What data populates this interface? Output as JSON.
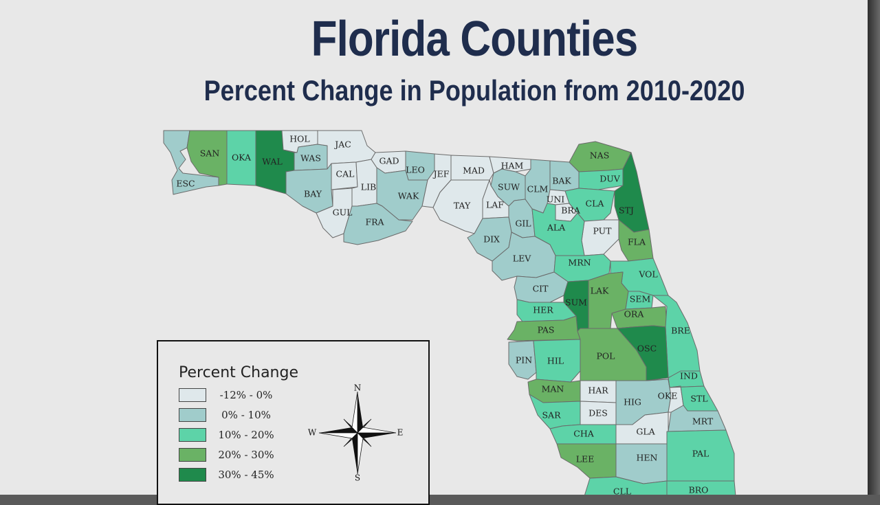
{
  "title": "Florida Counties",
  "subtitle": "Percent Change in Population from 2010-2020",
  "colors": {
    "c0": "#dfe8eb",
    "c1": "#a0cccb",
    "c2": "#5dd3a8",
    "c3": "#6ab265",
    "c4": "#1f8a4c"
  },
  "legend": {
    "title": "Percent Change",
    "items": [
      {
        "label": "-12% - 0%",
        "class": "c0"
      },
      {
        "label": "0% - 10%",
        "class": "c1"
      },
      {
        "label": "10% - 20%",
        "class": "c2"
      },
      {
        "label": "20% - 30%",
        "class": "c3"
      },
      {
        "label": "30% - 45%",
        "class": "c4"
      }
    ]
  },
  "compass": {
    "n": "N",
    "s": "S",
    "e": "E",
    "w": "W"
  },
  "counties": [
    {
      "code": "ESC",
      "class": "c1"
    },
    {
      "code": "SAN",
      "class": "c3"
    },
    {
      "code": "OKA",
      "class": "c2"
    },
    {
      "code": "WAL",
      "class": "c4"
    },
    {
      "code": "HOL",
      "class": "c0"
    },
    {
      "code": "WAS",
      "class": "c1"
    },
    {
      "code": "JAC",
      "class": "c0"
    },
    {
      "code": "BAY",
      "class": "c1"
    },
    {
      "code": "CAL",
      "class": "c0"
    },
    {
      "code": "GUL",
      "class": "c0"
    },
    {
      "code": "LIB",
      "class": "c0"
    },
    {
      "code": "GAD",
      "class": "c0"
    },
    {
      "code": "LEO",
      "class": "c1"
    },
    {
      "code": "WAK",
      "class": "c1"
    },
    {
      "code": "FRA",
      "class": "c1"
    },
    {
      "code": "JEF",
      "class": "c0"
    },
    {
      "code": "MAD",
      "class": "c0"
    },
    {
      "code": "TAY",
      "class": "c0"
    },
    {
      "code": "HAM",
      "class": "c0"
    },
    {
      "code": "SUW",
      "class": "c1"
    },
    {
      "code": "LAF",
      "class": "c0"
    },
    {
      "code": "CLM",
      "class": "c1"
    },
    {
      "code": "BAK",
      "class": "c1"
    },
    {
      "code": "UNI",
      "class": "c0"
    },
    {
      "code": "BRA",
      "class": "c0"
    },
    {
      "code": "NAS",
      "class": "c3"
    },
    {
      "code": "DUV",
      "class": "c2"
    },
    {
      "code": "CLA",
      "class": "c2"
    },
    {
      "code": "STJ",
      "class": "c4"
    },
    {
      "code": "PUT",
      "class": "c0"
    },
    {
      "code": "FLA",
      "class": "c3"
    },
    {
      "code": "GIL",
      "class": "c1"
    },
    {
      "code": "ALA",
      "class": "c2"
    },
    {
      "code": "DIX",
      "class": "c1"
    },
    {
      "code": "LEV",
      "class": "c1"
    },
    {
      "code": "MRN",
      "class": "c2"
    },
    {
      "code": "VOL",
      "class": "c2"
    },
    {
      "code": "CIT",
      "class": "c1"
    },
    {
      "code": "SUM",
      "class": "c4"
    },
    {
      "code": "LAK",
      "class": "c3"
    },
    {
      "code": "SEM",
      "class": "c2"
    },
    {
      "code": "ORA",
      "class": "c3"
    },
    {
      "code": "HER",
      "class": "c2"
    },
    {
      "code": "PAS",
      "class": "c3"
    },
    {
      "code": "BRE",
      "class": "c2"
    },
    {
      "code": "PIN",
      "class": "c1"
    },
    {
      "code": "HIL",
      "class": "c2"
    },
    {
      "code": "POL",
      "class": "c3"
    },
    {
      "code": "OSC",
      "class": "c4"
    },
    {
      "code": "IND",
      "class": "c2"
    },
    {
      "code": "MAN",
      "class": "c3"
    },
    {
      "code": "HAR",
      "class": "c0"
    },
    {
      "code": "HIG",
      "class": "c1"
    },
    {
      "code": "OKE",
      "class": "c0"
    },
    {
      "code": "STL",
      "class": "c2"
    },
    {
      "code": "SAR",
      "class": "c2"
    },
    {
      "code": "DES",
      "class": "c0"
    },
    {
      "code": "MRT",
      "class": "c1"
    },
    {
      "code": "CHA",
      "class": "c2"
    },
    {
      "code": "GLA",
      "class": "c0"
    },
    {
      "code": "LEE",
      "class": "c3"
    },
    {
      "code": "HEN",
      "class": "c1"
    },
    {
      "code": "PAL",
      "class": "c2"
    },
    {
      "code": "CLL",
      "class": "c2"
    },
    {
      "code": "BRO",
      "class": "c2"
    }
  ]
}
